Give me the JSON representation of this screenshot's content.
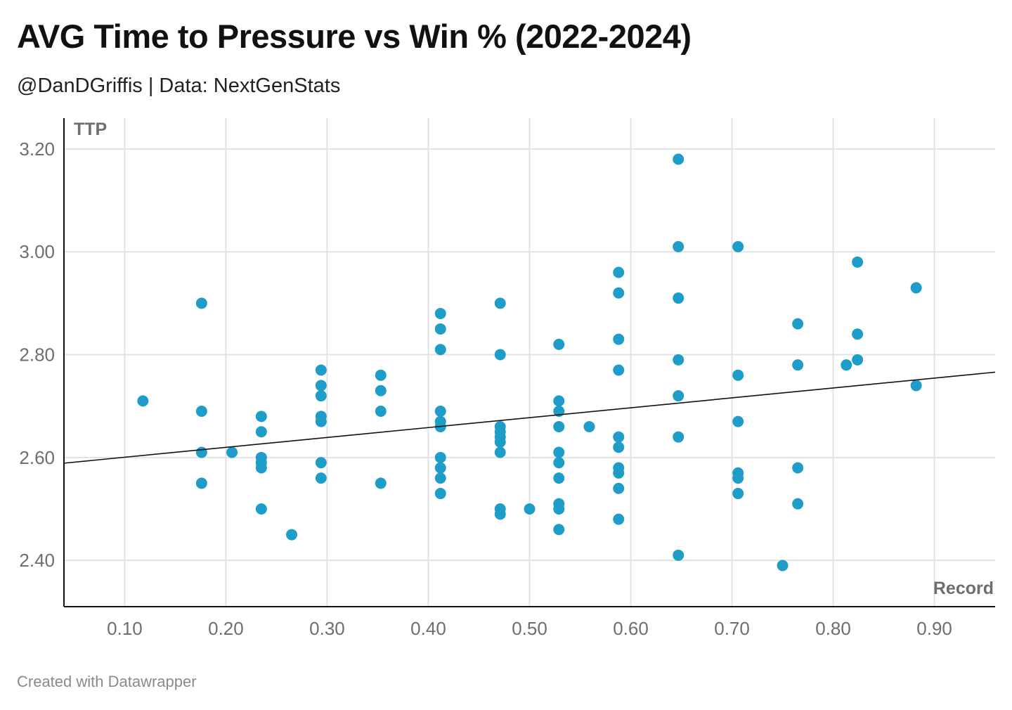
{
  "title": "AVG Time to Pressure vs Win % (2022-2024)",
  "subtitle": "@DanDGriffis | Data: NextGenStats",
  "footer": "Created with Datawrapper",
  "colors": {
    "point": "#1f9dc9",
    "trendline": "#111111",
    "grid": "#e2e2e2",
    "axis": "#111111"
  },
  "chart_data": {
    "type": "scatter",
    "title": "AVG Time to Pressure vs Win % (2022-2024)",
    "xlabel": "Record",
    "ylabel": "TTP",
    "xlim": [
      0.04,
      0.96
    ],
    "ylim": [
      2.31,
      3.26
    ],
    "xticks": [
      0.1,
      0.2,
      0.3,
      0.4,
      0.5,
      0.6,
      0.7,
      0.8,
      0.9
    ],
    "xtick_labels": [
      "0.10",
      "0.20",
      "0.30",
      "0.40",
      "0.50",
      "0.60",
      "0.70",
      "0.80",
      "0.90"
    ],
    "yticks": [
      2.4,
      2.6,
      2.8,
      3.0,
      3.2
    ],
    "ytick_labels": [
      "2.40",
      "2.60",
      "2.80",
      "3.00",
      "3.20"
    ],
    "grid": true,
    "trendline": {
      "x": [
        0.04,
        0.96
      ],
      "y": [
        2.589,
        2.766
      ]
    },
    "points": [
      [
        0.118,
        2.71
      ],
      [
        0.176,
        2.9
      ],
      [
        0.176,
        2.69
      ],
      [
        0.176,
        2.61
      ],
      [
        0.176,
        2.55
      ],
      [
        0.206,
        2.61
      ],
      [
        0.235,
        2.68
      ],
      [
        0.235,
        2.65
      ],
      [
        0.235,
        2.6
      ],
      [
        0.235,
        2.59
      ],
      [
        0.235,
        2.58
      ],
      [
        0.235,
        2.5
      ],
      [
        0.265,
        2.45
      ],
      [
        0.294,
        2.77
      ],
      [
        0.294,
        2.74
      ],
      [
        0.294,
        2.72
      ],
      [
        0.294,
        2.68
      ],
      [
        0.294,
        2.67
      ],
      [
        0.294,
        2.59
      ],
      [
        0.294,
        2.56
      ],
      [
        0.353,
        2.76
      ],
      [
        0.353,
        2.73
      ],
      [
        0.353,
        2.69
      ],
      [
        0.353,
        2.55
      ],
      [
        0.412,
        2.88
      ],
      [
        0.412,
        2.85
      ],
      [
        0.412,
        2.81
      ],
      [
        0.412,
        2.69
      ],
      [
        0.412,
        2.67
      ],
      [
        0.412,
        2.66
      ],
      [
        0.412,
        2.6
      ],
      [
        0.412,
        2.58
      ],
      [
        0.412,
        2.56
      ],
      [
        0.412,
        2.53
      ],
      [
        0.471,
        2.9
      ],
      [
        0.471,
        2.8
      ],
      [
        0.471,
        2.66
      ],
      [
        0.471,
        2.65
      ],
      [
        0.471,
        2.64
      ],
      [
        0.471,
        2.63
      ],
      [
        0.471,
        2.61
      ],
      [
        0.471,
        2.5
      ],
      [
        0.471,
        2.49
      ],
      [
        0.5,
        2.5
      ],
      [
        0.529,
        2.82
      ],
      [
        0.529,
        2.71
      ],
      [
        0.529,
        2.69
      ],
      [
        0.529,
        2.66
      ],
      [
        0.529,
        2.61
      ],
      [
        0.529,
        2.59
      ],
      [
        0.529,
        2.56
      ],
      [
        0.529,
        2.51
      ],
      [
        0.529,
        2.5
      ],
      [
        0.529,
        2.46
      ],
      [
        0.559,
        2.66
      ],
      [
        0.588,
        2.96
      ],
      [
        0.588,
        2.92
      ],
      [
        0.588,
        2.83
      ],
      [
        0.588,
        2.77
      ],
      [
        0.588,
        2.64
      ],
      [
        0.588,
        2.62
      ],
      [
        0.588,
        2.58
      ],
      [
        0.588,
        2.57
      ],
      [
        0.588,
        2.54
      ],
      [
        0.588,
        2.48
      ],
      [
        0.647,
        3.18
      ],
      [
        0.647,
        3.01
      ],
      [
        0.647,
        2.91
      ],
      [
        0.647,
        2.79
      ],
      [
        0.647,
        2.72
      ],
      [
        0.647,
        2.64
      ],
      [
        0.647,
        2.41
      ],
      [
        0.706,
        3.01
      ],
      [
        0.706,
        2.76
      ],
      [
        0.706,
        2.67
      ],
      [
        0.706,
        2.57
      ],
      [
        0.706,
        2.56
      ],
      [
        0.706,
        2.53
      ],
      [
        0.75,
        2.39
      ],
      [
        0.765,
        2.86
      ],
      [
        0.765,
        2.78
      ],
      [
        0.765,
        2.58
      ],
      [
        0.765,
        2.51
      ],
      [
        0.813,
        2.78
      ],
      [
        0.824,
        2.98
      ],
      [
        0.824,
        2.84
      ],
      [
        0.824,
        2.79
      ],
      [
        0.882,
        2.93
      ],
      [
        0.882,
        2.74
      ]
    ]
  }
}
